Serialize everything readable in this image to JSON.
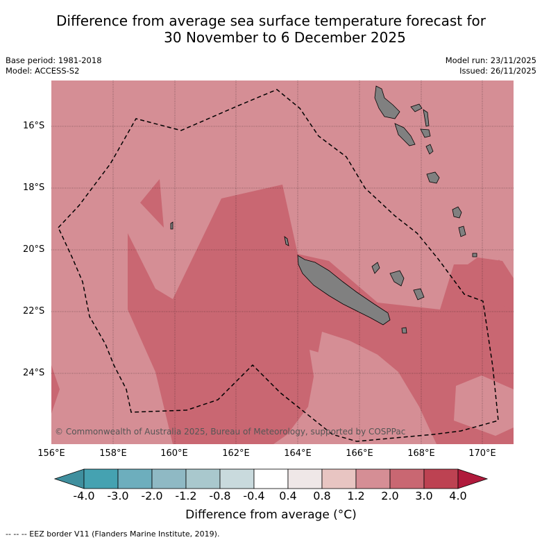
{
  "title": {
    "line1": "Difference from average sea surface temperature forecast for",
    "line2": "30 November to 6 December 2025"
  },
  "meta_left": {
    "base_period": "Base period: 1981-2018",
    "model": "Model: ACCESS-S2"
  },
  "meta_right": {
    "model_run": "Model run: 23/11/2025",
    "issued": "Issued: 26/11/2025"
  },
  "axes": {
    "lat_labels": [
      "16°S",
      "18°S",
      "20°S",
      "22°S",
      "24°S"
    ],
    "lon_labels": [
      "156°E",
      "158°E",
      "160°E",
      "162°E",
      "164°E",
      "166°E",
      "168°E",
      "170°E"
    ]
  },
  "copyright": "© Commonwealth of Australia 2025, Bureau of Meteorology, supported by COSPPac",
  "colorbar": {
    "ticks": [
      "-4.0",
      "-3.0",
      "-2.0",
      "-1.2",
      "-0.8",
      "-0.4",
      "0.4",
      "0.8",
      "1.2",
      "2.0",
      "3.0",
      "4.0"
    ],
    "colors": [
      "#3f8f9e",
      "#45a2b1",
      "#6daebd",
      "#8fb9c4",
      "#a9c8cd",
      "#c9dadd",
      "#ffffff",
      "#efe7e7",
      "#e8c5c2",
      "#d58e95",
      "#c96772",
      "#bd4252",
      "#b01a3c"
    ],
    "label": "Difference from average (°C)"
  },
  "footer": "--  --  -- EEZ border V11 (Flanders Marine Institute, 2019).",
  "map_colors": {
    "background": "#d58e95",
    "warm_zone": "#c96772",
    "land": "#808080"
  }
}
